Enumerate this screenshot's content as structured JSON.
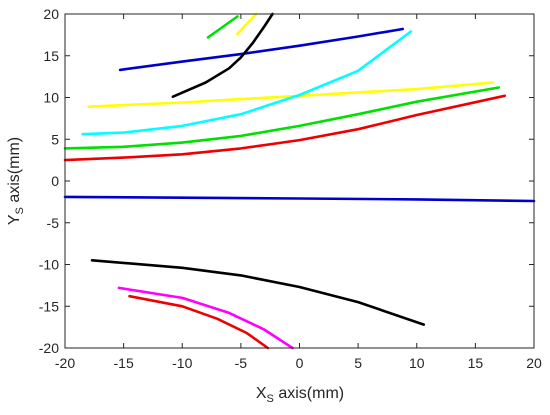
{
  "chart_data": {
    "type": "line",
    "title": "",
    "xlabel": {
      "main": "X",
      "sub": "S",
      "rest": " axis(mm)"
    },
    "ylabel": {
      "main": "Y",
      "sub": "S",
      "rest": " axis(mm)"
    },
    "xlim": [
      -20,
      20
    ],
    "ylim": [
      -20,
      20
    ],
    "xticks": [
      -20,
      -15,
      -10,
      -5,
      0,
      5,
      10,
      15,
      20
    ],
    "yticks": [
      -20,
      -15,
      -10,
      -5,
      0,
      5,
      10,
      15,
      20
    ],
    "grid": false,
    "legend": "none",
    "series": [
      {
        "color": "#0000cc",
        "points": [
          [
            -15.3,
            13.3
          ],
          [
            -10,
            14.3
          ],
          [
            -5,
            15.2
          ],
          [
            0,
            16.2
          ],
          [
            5,
            17.3
          ],
          [
            8.8,
            18.2
          ]
        ]
      },
      {
        "color": "#000000",
        "points": [
          [
            -10.8,
            10.1
          ],
          [
            -8,
            11.8
          ],
          [
            -6,
            13.5
          ],
          [
            -5,
            14.8
          ],
          [
            -4,
            16.5
          ],
          [
            -3,
            18.5
          ],
          [
            -2.3,
            20
          ]
        ]
      },
      {
        "color": "#00e000",
        "points": [
          [
            -7.8,
            17.2
          ],
          [
            -6.5,
            18.5
          ],
          [
            -5.3,
            19.7
          ]
        ]
      },
      {
        "color": "#ffff00",
        "points": [
          [
            -5.3,
            17.6
          ],
          [
            -4.5,
            18.8
          ],
          [
            -3.7,
            20
          ]
        ]
      },
      {
        "color": "#ffff00",
        "points": [
          [
            -18,
            8.9
          ],
          [
            -10,
            9.4
          ],
          [
            0,
            10.2
          ],
          [
            10,
            11
          ],
          [
            16.5,
            11.8
          ]
        ]
      },
      {
        "color": "#00ffff",
        "points": [
          [
            -18.5,
            5.6
          ],
          [
            -15,
            5.8
          ],
          [
            -10,
            6.6
          ],
          [
            -5,
            8
          ],
          [
            0,
            10.3
          ],
          [
            5,
            13.2
          ],
          [
            9.5,
            17.9
          ]
        ]
      },
      {
        "color": "#00e000",
        "points": [
          [
            -20,
            3.9
          ],
          [
            -15,
            4.1
          ],
          [
            -10,
            4.6
          ],
          [
            -5,
            5.4
          ],
          [
            0,
            6.6
          ],
          [
            5,
            8
          ],
          [
            10,
            9.5
          ],
          [
            17,
            11.2
          ]
        ]
      },
      {
        "color": "#ee0000",
        "points": [
          [
            -20,
            2.5
          ],
          [
            -15,
            2.8
          ],
          [
            -10,
            3.2
          ],
          [
            -5,
            3.9
          ],
          [
            0,
            4.9
          ],
          [
            5,
            6.2
          ],
          [
            10,
            7.9
          ],
          [
            17.5,
            10.2
          ]
        ]
      },
      {
        "color": "#0000cc",
        "points": [
          [
            -20,
            -1.9
          ],
          [
            -10,
            -2
          ],
          [
            0,
            -2.1
          ],
          [
            10,
            -2.2
          ],
          [
            20,
            -2.4
          ]
        ]
      },
      {
        "color": "#000000",
        "points": [
          [
            -17.7,
            -9.5
          ],
          [
            -10,
            -10.4
          ],
          [
            -5,
            -11.3
          ],
          [
            0,
            -12.7
          ],
          [
            5,
            -14.5
          ],
          [
            10.6,
            -17.2
          ]
        ]
      },
      {
        "color": "#ff00ff",
        "points": [
          [
            -15.4,
            -12.8
          ],
          [
            -10,
            -14
          ],
          [
            -6,
            -15.8
          ],
          [
            -3,
            -17.8
          ],
          [
            -0.6,
            -20
          ]
        ]
      },
      {
        "color": "#ee0000",
        "points": [
          [
            -14.5,
            -13.8
          ],
          [
            -10,
            -15
          ],
          [
            -7,
            -16.5
          ],
          [
            -4.5,
            -18.2
          ],
          [
            -2.7,
            -20
          ]
        ]
      }
    ]
  }
}
